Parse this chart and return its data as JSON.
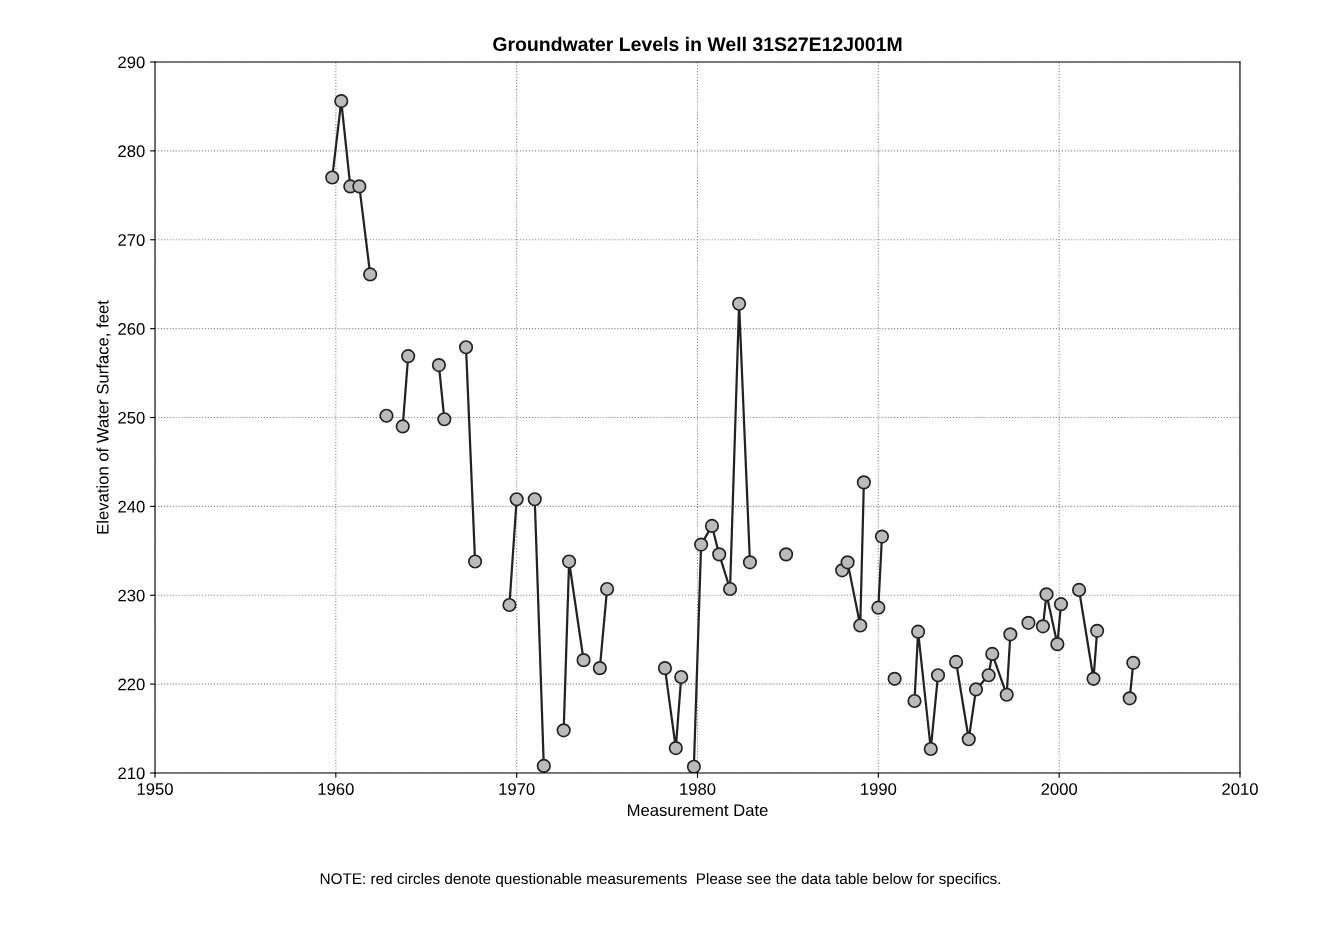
{
  "chart_data": {
    "type": "line",
    "title": "Groundwater Levels in Well 31S27E12J001M",
    "xlabel": "Measurement Date",
    "ylabel": "Elevation of Water Surface, feet",
    "annotations": [
      "NOTE: red circles denote questionable measurements  Please see the data table below for specifics."
    ],
    "xlim": [
      1950,
      2010
    ],
    "xticks": [
      1950,
      1960,
      1970,
      1980,
      1990,
      2000,
      2010
    ],
    "ylim": [
      210,
      290
    ],
    "yticks": [
      210,
      220,
      230,
      240,
      250,
      260,
      270,
      280,
      290
    ],
    "grid": true,
    "marker": "circle",
    "line_style": "solid",
    "series": [
      {
        "color": "#222222",
        "x": [
          1959.8,
          1960.3,
          1960.8,
          1961.3,
          1961.9
        ],
        "values": [
          277,
          285.6,
          276,
          276,
          266.1
        ]
      },
      {
        "color": "#222222",
        "x": [
          1962.8
        ],
        "values": [
          250.2
        ]
      },
      {
        "color": "#222222",
        "x": [
          1963.7,
          1964.0
        ],
        "values": [
          249,
          256.9
        ]
      },
      {
        "color": "#222222",
        "x": [
          1965.7,
          1966.0
        ],
        "values": [
          255.9,
          249.8
        ]
      },
      {
        "color": "#222222",
        "x": [
          1967.2,
          1967.7
        ],
        "values": [
          257.9,
          233.8
        ]
      },
      {
        "color": "#222222",
        "x": [
          1969.6,
          1970.0
        ],
        "values": [
          228.9,
          240.8
        ]
      },
      {
        "color": "#222222",
        "x": [
          1971.0,
          1971.5
        ],
        "values": [
          240.8,
          210.8
        ]
      },
      {
        "color": "#222222",
        "x": [
          1972.6,
          1972.9,
          1973.7
        ],
        "values": [
          214.8,
          233.8,
          222.7
        ]
      },
      {
        "color": "#222222",
        "x": [
          1974.6,
          1975.0
        ],
        "values": [
          221.8,
          230.7
        ]
      },
      {
        "color": "#222222",
        "x": [
          1978.2,
          1978.8,
          1979.1
        ],
        "values": [
          221.8,
          212.8,
          220.8
        ]
      },
      {
        "color": "#222222",
        "x": [
          1979.8,
          1980.2,
          1980.8,
          1981.2,
          1981.8,
          1982.3,
          1982.9
        ],
        "values": [
          210.7,
          235.7,
          237.8,
          234.6,
          230.7,
          262.8,
          233.7
        ]
      },
      {
        "color": "#222222",
        "x": [
          1984.9
        ],
        "values": [
          234.6
        ]
      },
      {
        "color": "#222222",
        "x": [
          1988.0,
          1988.3,
          1989.0,
          1989.2
        ],
        "values": [
          232.8,
          233.7,
          226.6,
          242.7
        ]
      },
      {
        "color": "#222222",
        "x": [
          1990.0,
          1990.2
        ],
        "values": [
          228.6,
          236.6
        ]
      },
      {
        "color": "#222222",
        "x": [
          1990.9
        ],
        "values": [
          220.6
        ]
      },
      {
        "color": "#222222",
        "x": [
          1992.0,
          1992.2,
          1992.9,
          1993.3
        ],
        "values": [
          218.1,
          225.9,
          212.7,
          221.0
        ]
      },
      {
        "color": "#222222",
        "x": [
          1994.3,
          1995.0,
          1995.4,
          1996.1,
          1996.3,
          1997.1,
          1997.3
        ],
        "values": [
          222.5,
          213.8,
          219.4,
          221.0,
          223.4,
          218.8,
          225.6
        ]
      },
      {
        "color": "#222222",
        "x": [
          1998.3
        ],
        "values": [
          226.9
        ]
      },
      {
        "color": "#222222",
        "x": [
          1999.1,
          1999.3,
          1999.9,
          2000.1
        ],
        "values": [
          226.5,
          230.1,
          224.5,
          229.0
        ]
      },
      {
        "color": "#222222",
        "x": [
          2001.1,
          2001.9,
          2002.1
        ],
        "values": [
          230.6,
          220.6,
          226.0
        ]
      },
      {
        "color": "#222222",
        "x": [
          2003.9,
          2004.1
        ],
        "values": [
          218.4,
          222.4
        ]
      }
    ]
  }
}
